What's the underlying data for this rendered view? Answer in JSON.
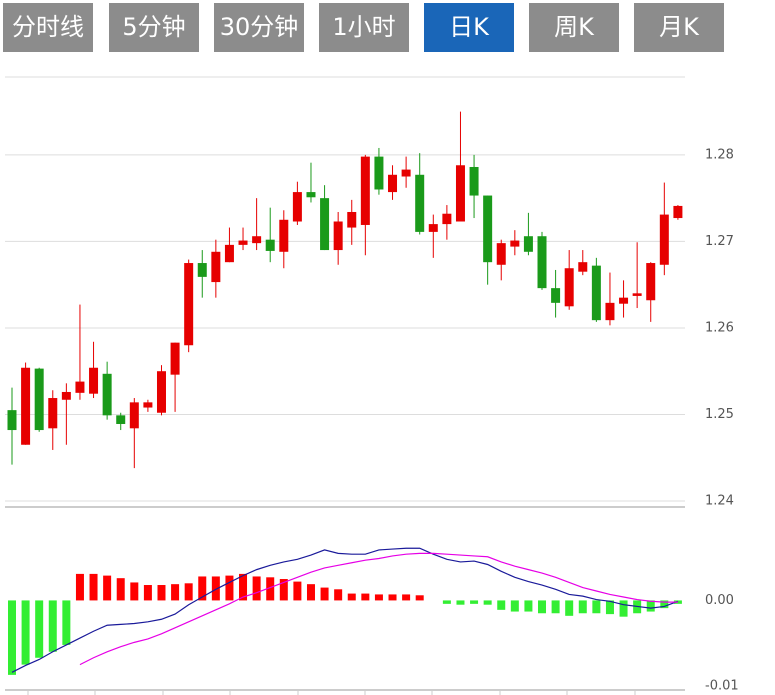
{
  "tabs": {
    "items": [
      "分时线",
      "5分钟",
      "30分钟",
      "1小时",
      "日K",
      "周K",
      "月K"
    ],
    "active": 4
  },
  "chart_data": [
    {
      "type": "candlestick",
      "up_color": "#e60000",
      "down_color": "#1a9a1a",
      "ylim": [
        1.24,
        1.289
      ],
      "yticks": [
        1.24,
        1.25,
        1.26,
        1.27,
        1.28
      ],
      "grid": true,
      "open": [
        1.2505,
        1.2465,
        1.2553,
        1.2484,
        1.2517,
        1.2525,
        1.2524,
        1.2547,
        1.2499,
        1.2484,
        1.2508,
        1.2502,
        1.2546,
        1.258,
        1.2675,
        1.2653,
        1.2676,
        1.2696,
        1.2698,
        1.2702,
        1.2688,
        1.2723,
        1.2757,
        1.275,
        1.269,
        1.2716,
        1.2719,
        1.2798,
        1.2757,
        1.2775,
        1.2777,
        1.2711,
        1.272,
        1.2723,
        1.2786,
        1.2753,
        1.2673,
        1.2694,
        1.2706,
        1.2706,
        1.2646,
        1.2625,
        1.2665,
        1.2672,
        1.2609,
        1.2628,
        1.2637,
        1.2632,
        1.2673,
        1.2727
      ],
      "high": [
        1.2531,
        1.256,
        1.2554,
        1.2528,
        1.2536,
        1.2627,
        1.2584,
        1.2561,
        1.2502,
        1.2519,
        1.2517,
        1.2557,
        1.2583,
        1.2679,
        1.269,
        1.2702,
        1.2716,
        1.2716,
        1.275,
        1.2739,
        1.2736,
        1.2769,
        1.2791,
        1.2765,
        1.2734,
        1.2748,
        1.28,
        1.2808,
        1.2788,
        1.2798,
        1.2802,
        1.2731,
        1.2742,
        1.285,
        1.28,
        1.2753,
        1.2702,
        1.2713,
        1.2733,
        1.2711,
        1.2667,
        1.269,
        1.269,
        1.2681,
        1.2664,
        1.2655,
        1.2699,
        1.2676,
        1.2768,
        1.2742
      ],
      "low": [
        1.2442,
        1.2465,
        1.248,
        1.2459,
        1.2465,
        1.2517,
        1.2519,
        1.2494,
        1.2482,
        1.2438,
        1.2503,
        1.2499,
        1.2503,
        1.2572,
        1.2635,
        1.2635,
        1.2676,
        1.269,
        1.269,
        1.2676,
        1.2669,
        1.2719,
        1.2745,
        1.269,
        1.2673,
        1.2696,
        1.2684,
        1.2754,
        1.2748,
        1.2762,
        1.2708,
        1.2681,
        1.2702,
        1.2723,
        1.2727,
        1.265,
        1.2655,
        1.2684,
        1.2684,
        1.2644,
        1.2612,
        1.2621,
        1.2661,
        1.2607,
        1.2603,
        1.2612,
        1.2623,
        1.2607,
        1.2661,
        1.2725
      ],
      "close": [
        1.2482,
        1.2554,
        1.2482,
        1.2519,
        1.2526,
        1.2538,
        1.2554,
        1.2499,
        1.2489,
        1.2514,
        1.2514,
        1.255,
        1.2583,
        1.2675,
        1.2659,
        1.2688,
        1.2696,
        1.2701,
        1.2706,
        1.2689,
        1.2725,
        1.2757,
        1.2751,
        1.269,
        1.2723,
        1.2734,
        1.2798,
        1.276,
        1.2777,
        1.2783,
        1.2711,
        1.272,
        1.2732,
        1.2788,
        1.2753,
        1.2676,
        1.2698,
        1.2701,
        1.2688,
        1.2646,
        1.2629,
        1.2669,
        1.2676,
        1.2609,
        1.2629,
        1.2635,
        1.264,
        1.2675,
        1.2731,
        1.2741
      ]
    },
    {
      "type": "macd",
      "up_color": "#ff0000",
      "down_color": "#33ee33",
      "ylim": [
        -0.01,
        0.0108
      ],
      "yticks": [
        {
          "value": -0.01,
          "label": "-0.01"
        },
        {
          "value": 0,
          "label": "0.00"
        }
      ],
      "values": [
        -0.0087,
        -0.0075,
        -0.0067,
        -0.006,
        -0.0052,
        0.0031,
        0.0031,
        0.0029,
        0.0026,
        0.0021,
        0.0018,
        0.0018,
        0.0019,
        0.002,
        0.0028,
        0.0028,
        0.0029,
        0.0031,
        0.0028,
        0.0027,
        0.0025,
        0.0022,
        0.0019,
        0.0015,
        0.0013,
        0.0008,
        0.0008,
        0.0007,
        0.0007,
        0.0007,
        0.0006,
        0,
        -0.0004,
        -0.0005,
        -0.0004,
        -0.0005,
        -0.0011,
        -0.0013,
        -0.0013,
        -0.0015,
        -0.0015,
        -0.0018,
        -0.0015,
        -0.0015,
        -0.0016,
        -0.0019,
        -0.0015,
        -0.0013,
        -0.0009,
        -0.0004
      ],
      "series": [
        {
          "color": "#1a1a9a",
          "values": [
            -0.0084,
            -0.0076,
            -0.0069,
            -0.006,
            -0.0052,
            -0.0044,
            -0.0036,
            -0.0029,
            -0.0028,
            -0.0027,
            -0.0025,
            -0.0022,
            -0.0016,
            -0.0005,
            0.0004,
            0.0013,
            0.0021,
            0.0029,
            0.0036,
            0.0041,
            0.0045,
            0.0048,
            0.0053,
            0.0059,
            0.0055,
            0.0054,
            0.0054,
            0.0059,
            0.006,
            0.0061,
            0.0061,
            0.0054,
            0.0048,
            0.0045,
            0.0046,
            0.0042,
            0.0034,
            0.0027,
            0.0022,
            0.0018,
            0.0013,
            0.0007,
            0.0005,
            0.0001,
            -0.0001,
            -0.0005,
            -0.0007,
            -0.0009,
            -0.0007,
            -0.0001
          ]
        },
        {
          "color": "#e600e6",
          "values": [
            null,
            null,
            null,
            null,
            null,
            -0.0075,
            -0.0067,
            -0.006,
            -0.0054,
            -0.0049,
            -0.0045,
            -0.0039,
            -0.0032,
            -0.0025,
            -0.0018,
            -0.0011,
            -0.0004,
            0.0004,
            0.0009,
            0.0015,
            0.0021,
            0.0027,
            0.0033,
            0.0038,
            0.0041,
            0.0044,
            0.0047,
            0.0049,
            0.0052,
            0.0054,
            0.0055,
            0.0055,
            0.0054,
            0.0053,
            0.0052,
            0.0051,
            0.0045,
            0.004,
            0.0036,
            0.0032,
            0.0027,
            0.0021,
            0.0015,
            0.0011,
            0.0007,
            0.0004,
            0.0001,
            -0.0001,
            -0.0002,
            -0.0002
          ]
        }
      ]
    }
  ]
}
